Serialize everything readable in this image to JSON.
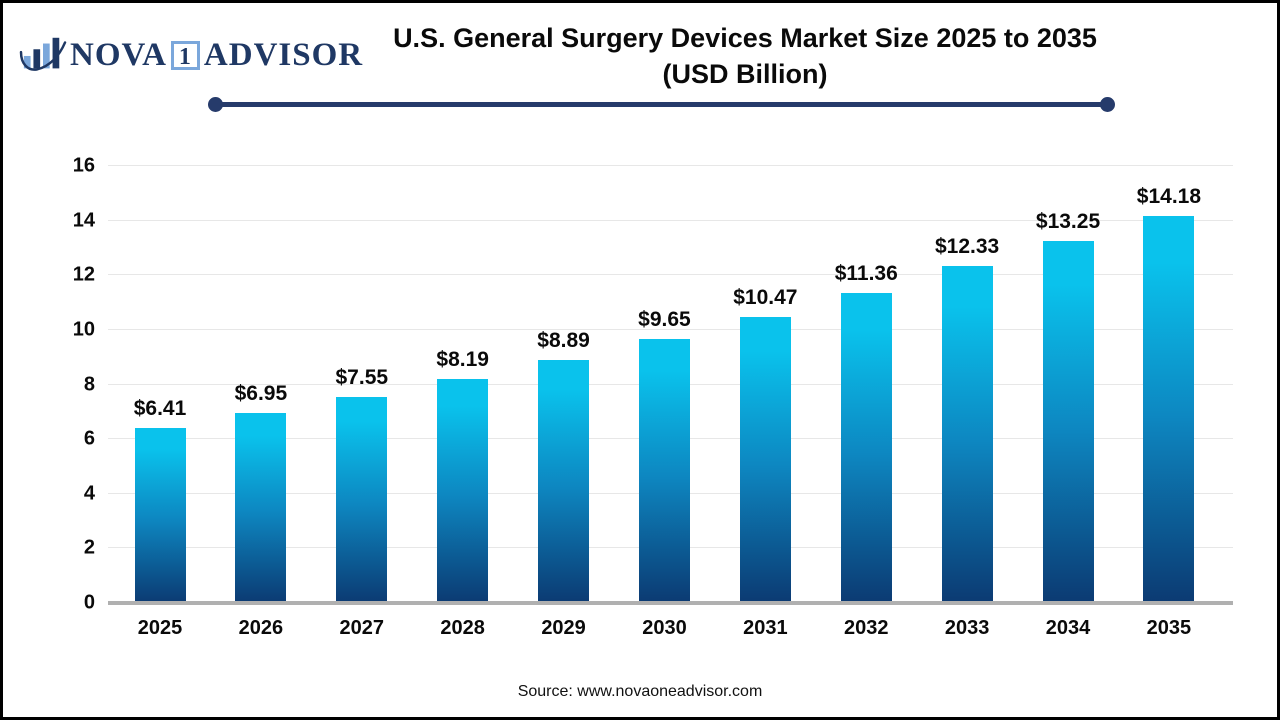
{
  "colors": {
    "bar_top": "#0ac2ec",
    "bar_mid": "#0d87c1",
    "bar_bottom": "#0c3a72",
    "navy": "#1f3864",
    "logo_light_blue": "#7ba7db",
    "gridline": "#e7e7e7",
    "baseline": "#b0b0b0",
    "text": "#0d0d0d",
    "border": "#000000"
  },
  "logo": {
    "icon": "bar-chart-swoosh-icon",
    "part1": "NOVA",
    "badge": "1",
    "part2": "ADVISOR"
  },
  "header": {
    "title": "U.S. General Surgery Devices Market Size 2025 to 2035",
    "subtitle": "(USD Billion)"
  },
  "footer": {
    "source": "Source: www.novaoneadvisor.com"
  },
  "chart_data": {
    "type": "bar",
    "title": "U.S. General Surgery Devices Market Size 2025 to 2035 (USD Billion)",
    "categories": [
      "2025",
      "2026",
      "2027",
      "2028",
      "2029",
      "2030",
      "2031",
      "2032",
      "2033",
      "2034",
      "2035"
    ],
    "values": [
      6.41,
      6.95,
      7.55,
      8.19,
      8.89,
      9.65,
      10.47,
      11.36,
      12.33,
      13.25,
      14.18
    ],
    "value_labels": [
      "$6.41",
      "$6.95",
      "$7.55",
      "$8.19",
      "$8.89",
      "$9.65",
      "$10.47",
      "$11.36",
      "$12.33",
      "$13.25",
      "$14.18"
    ],
    "xlabel": "",
    "ylabel": "",
    "ylim": [
      0,
      16
    ],
    "yticks": [
      0,
      2,
      4,
      6,
      8,
      10,
      12,
      14,
      16
    ],
    "grid": true,
    "legend": false
  }
}
